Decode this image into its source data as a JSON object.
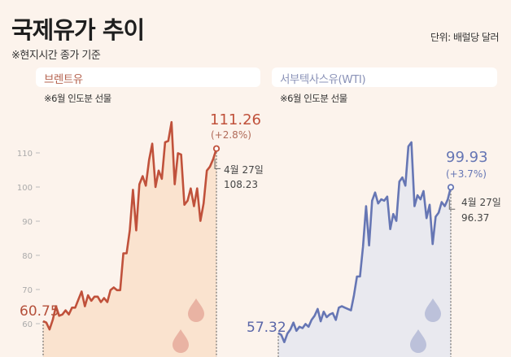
{
  "header": {
    "title": "국제유가 추이",
    "subtitle": "※현지시간 종가 기준",
    "unit": "단위: 배럴당 달러"
  },
  "colors": {
    "background": "#fcf3ec",
    "brent_line": "#c0513b",
    "brent_fill": "#fae3cf",
    "wti_line": "#6676b4",
    "wti_fill": "#e9e9ef"
  },
  "chart_data": [
    {
      "type": "area",
      "title": "브렌트유",
      "note": "※6월 인도분 선물",
      "y_ticks": [
        "110",
        "100",
        "90",
        "80",
        "70",
        "60"
      ],
      "y_tick_values": [
        110,
        100,
        90,
        80,
        70,
        60
      ],
      "ylim": [
        57,
        120
      ],
      "grid": false,
      "values": [
        60.75,
        60.3,
        58.3,
        61.1,
        65.1,
        62.3,
        62.7,
        63.9,
        62.7,
        64.7,
        64.7,
        67.1,
        69.4,
        65.1,
        68.3,
        66.7,
        67.9,
        67.9,
        66.3,
        67.5,
        66.3,
        69.8,
        70.6,
        69.8,
        69.8,
        80.6,
        80.6,
        87.3,
        99.2,
        87.3,
        100.8,
        103.2,
        100.4,
        107.9,
        112.7,
        100.0,
        104.8,
        102.4,
        113.1,
        113.5,
        119.0,
        100.8,
        109.9,
        109.5,
        94.8,
        96.0,
        99.6,
        94.4,
        99.6,
        90.1,
        95.2,
        104.8,
        106.0,
        108.23,
        111.26
      ],
      "start_label": "60.75",
      "end_label": "111.26",
      "end_change": "(+2.8%)",
      "prev_date": "4월 27일",
      "prev_value": "108.23"
    },
    {
      "type": "area",
      "title": "서부텍사스유(WTI)",
      "note": "※6월 인도분 선물",
      "ylim": [
        57,
        120
      ],
      "grid": false,
      "values": [
        57.32,
        56.7,
        54.6,
        57.1,
        58.3,
        60.3,
        57.9,
        59.1,
        58.7,
        59.9,
        59.1,
        61.1,
        62.3,
        64.3,
        60.7,
        63.5,
        61.9,
        62.7,
        63.1,
        61.1,
        64.7,
        65.1,
        64.7,
        64.3,
        63.9,
        68.3,
        73.8,
        73.8,
        82.5,
        94.4,
        82.9,
        96.0,
        98.4,
        95.2,
        96.4,
        96.0,
        97.2,
        87.7,
        92.1,
        90.1,
        101.6,
        102.8,
        100.4,
        111.9,
        113.1,
        94.4,
        97.6,
        96.4,
        98.8,
        90.9,
        94.8,
        83.3,
        91.3,
        92.5,
        95.6,
        94.4,
        96.37,
        99.93
      ],
      "start_label": "57.32",
      "end_label": "99.93",
      "end_change": "(+3.7%)",
      "prev_date": "4월 27일",
      "prev_value": "96.37"
    }
  ]
}
